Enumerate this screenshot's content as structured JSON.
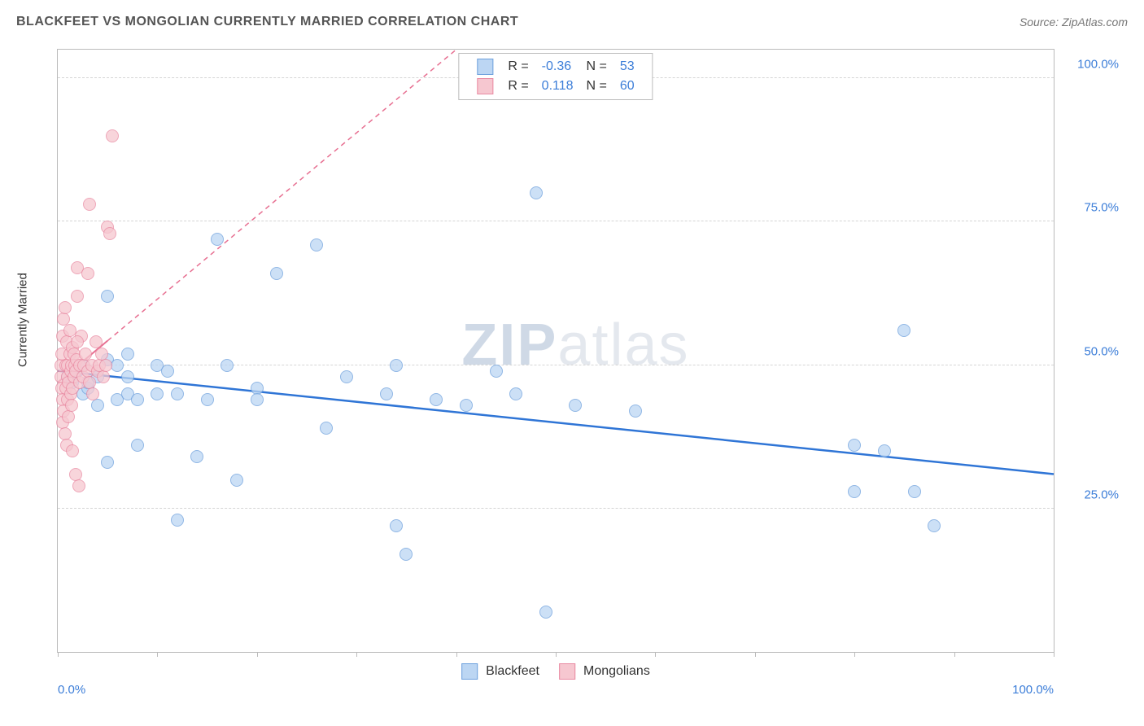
{
  "header": {
    "title": "BLACKFEET VS MONGOLIAN CURRENTLY MARRIED CORRELATION CHART",
    "source_label": "Source: ZipAtlas.com"
  },
  "watermark": {
    "part1": "ZIP",
    "part2": "atlas"
  },
  "chart": {
    "type": "scatter",
    "ylabel": "Currently Married",
    "xlim": [
      0,
      100
    ],
    "ylim": [
      0,
      105
    ],
    "ytick_positions": [
      25,
      50,
      75,
      100
    ],
    "ytick_labels": [
      "25.0%",
      "50.0%",
      "75.0%",
      "100.0%"
    ],
    "xtick_positions": [
      0,
      10,
      20,
      30,
      40,
      50,
      60,
      70,
      80,
      90,
      100
    ],
    "xlim_label_left": "0.0%",
    "xlim_label_right": "100.0%",
    "background_color": "#ffffff",
    "grid_color": "#d5d5d5",
    "axis_color": "#bbbbbb",
    "point_radius": 8,
    "series": [
      {
        "name": "Blackfeet",
        "fill": "#bcd6f3",
        "stroke": "#6da0dd",
        "opacity": 0.75,
        "R": -0.36,
        "N": 53,
        "trend": {
          "x1": 0,
          "y1": 49,
          "x2": 100,
          "y2": 31,
          "stroke": "#2f75d6",
          "width": 2.5,
          "dash": "none"
        },
        "points": [
          [
            1,
            48
          ],
          [
            1.5,
            47
          ],
          [
            2,
            49
          ],
          [
            2.5,
            50
          ],
          [
            2.5,
            45
          ],
          [
            3,
            46
          ],
          [
            3,
            47
          ],
          [
            4,
            48
          ],
          [
            4,
            43
          ],
          [
            5,
            62
          ],
          [
            5,
            51
          ],
          [
            5,
            33
          ],
          [
            6,
            50
          ],
          [
            6,
            44
          ],
          [
            7,
            48
          ],
          [
            7,
            45
          ],
          [
            7,
            52
          ],
          [
            8,
            36
          ],
          [
            8,
            44
          ],
          [
            10,
            50
          ],
          [
            10,
            45
          ],
          [
            11,
            49
          ],
          [
            12,
            23
          ],
          [
            12,
            45
          ],
          [
            14,
            34
          ],
          [
            15,
            44
          ],
          [
            16,
            72
          ],
          [
            17,
            50
          ],
          [
            18,
            30
          ],
          [
            20,
            46
          ],
          [
            20,
            44
          ],
          [
            22,
            66
          ],
          [
            26,
            71
          ],
          [
            27,
            39
          ],
          [
            29,
            48
          ],
          [
            33,
            45
          ],
          [
            34,
            50
          ],
          [
            34,
            22
          ],
          [
            35,
            17
          ],
          [
            38,
            44
          ],
          [
            41,
            43
          ],
          [
            44,
            49
          ],
          [
            46,
            45
          ],
          [
            48,
            80
          ],
          [
            49,
            7
          ],
          [
            52,
            43
          ],
          [
            58,
            42
          ],
          [
            80,
            28
          ],
          [
            80,
            36
          ],
          [
            83,
            35
          ],
          [
            85,
            56
          ],
          [
            86,
            28
          ],
          [
            88,
            22
          ]
        ]
      },
      {
        "name": "Mongolians",
        "fill": "#f6c7d0",
        "stroke": "#e98aa2",
        "opacity": 0.75,
        "R": 0.118,
        "N": 60,
        "trend": {
          "x1": 0,
          "y1": 47,
          "x2": 40,
          "y2": 105,
          "stroke": "#e76f91",
          "width": 1.5,
          "dash": "6,5"
        },
        "trend_solid_end_x": 5,
        "points": [
          [
            0.3,
            48
          ],
          [
            0.3,
            50
          ],
          [
            0.4,
            46
          ],
          [
            0.4,
            52
          ],
          [
            0.5,
            44
          ],
          [
            0.5,
            55
          ],
          [
            0.5,
            40
          ],
          [
            0.6,
            58
          ],
          [
            0.6,
            42
          ],
          [
            0.7,
            60
          ],
          [
            0.7,
            38
          ],
          [
            0.8,
            46
          ],
          [
            0.8,
            50
          ],
          [
            0.9,
            36
          ],
          [
            0.9,
            54
          ],
          [
            1.0,
            48
          ],
          [
            1.0,
            44
          ],
          [
            1.0,
            50
          ],
          [
            1.1,
            41
          ],
          [
            1.1,
            47
          ],
          [
            1.2,
            52
          ],
          [
            1.2,
            56
          ],
          [
            1.3,
            45
          ],
          [
            1.3,
            49
          ],
          [
            1.4,
            50
          ],
          [
            1.4,
            43
          ],
          [
            1.5,
            53
          ],
          [
            1.5,
            46
          ],
          [
            1.5,
            35
          ],
          [
            1.6,
            48
          ],
          [
            1.6,
            52
          ],
          [
            1.7,
            50
          ],
          [
            1.8,
            49
          ],
          [
            1.8,
            31
          ],
          [
            1.9,
            51
          ],
          [
            2.0,
            62
          ],
          [
            2.0,
            67
          ],
          [
            2.1,
            29
          ],
          [
            2.2,
            50
          ],
          [
            2.2,
            47
          ],
          [
            2.4,
            55
          ],
          [
            2.5,
            48
          ],
          [
            2.6,
            50
          ],
          [
            2.8,
            52
          ],
          [
            3.0,
            49
          ],
          [
            3.0,
            66
          ],
          [
            3.2,
            78
          ],
          [
            3.2,
            47
          ],
          [
            3.4,
            50
          ],
          [
            3.5,
            45
          ],
          [
            3.8,
            54
          ],
          [
            4.0,
            49
          ],
          [
            4.2,
            50
          ],
          [
            4.4,
            52
          ],
          [
            4.6,
            48
          ],
          [
            4.8,
            50
          ],
          [
            5.0,
            74
          ],
          [
            5.2,
            73
          ],
          [
            5.5,
            90
          ],
          [
            2.0,
            54
          ]
        ]
      }
    ],
    "legend_top": {
      "r_label": "R =",
      "n_label": "N =",
      "value_color": "#3b7dd8"
    },
    "legend_bottom": {
      "items": [
        "Blackfeet",
        "Mongolians"
      ]
    }
  }
}
